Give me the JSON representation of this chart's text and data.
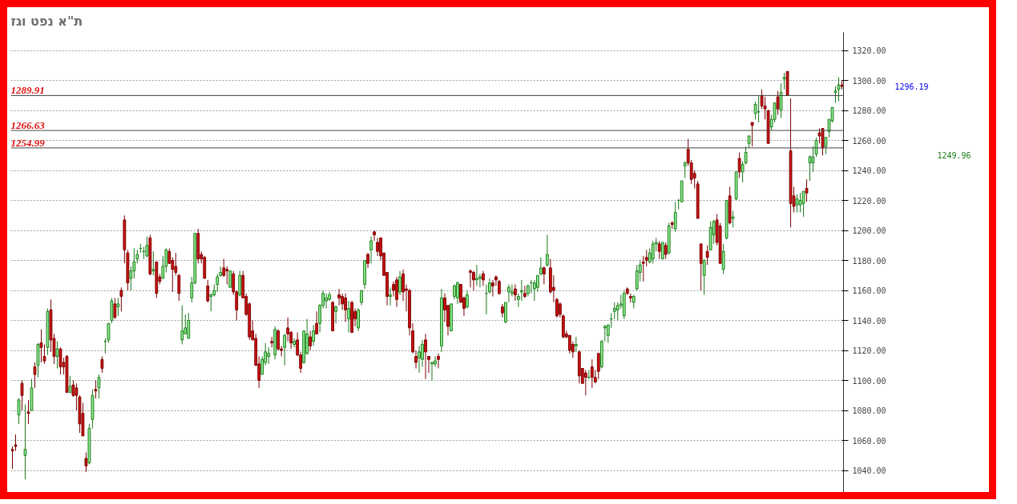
{
  "chart_data": {
    "type": "candlestick",
    "title": "ת\"א נפט וגז",
    "categories": [
      null,
      null,
      null,
      null,
      null,
      null,
      null,
      null,
      null,
      null,
      null,
      null,
      null,
      null,
      null,
      null,
      null,
      null,
      null,
      null,
      null,
      null,
      null,
      null,
      null,
      null,
      null,
      null,
      null,
      null,
      null,
      null,
      null,
      null,
      null,
      null,
      null,
      null,
      null,
      null,
      null,
      null,
      null,
      null,
      null,
      null,
      null,
      null,
      null,
      null,
      null,
      null,
      null,
      null,
      null,
      null,
      null,
      null,
      null,
      null,
      null,
      null,
      null,
      null,
      null,
      null,
      null,
      null,
      null,
      null,
      null,
      null,
      null,
      null,
      null,
      null,
      null,
      null,
      null,
      null,
      null,
      null,
      null,
      null,
      null,
      null,
      null,
      null,
      null,
      null,
      null,
      null,
      null,
      null,
      null,
      null,
      null,
      null,
      null,
      null,
      null,
      null,
      null,
      null,
      null,
      null,
      null,
      null,
      null,
      null,
      null,
      null,
      null,
      null,
      null,
      null,
      null,
      null,
      null,
      null,
      null,
      null,
      null,
      null,
      null,
      null,
      null,
      null,
      null,
      null,
      null,
      null,
      null,
      null,
      null,
      null,
      null,
      null,
      null,
      null,
      null,
      null,
      null,
      null,
      null,
      null,
      null,
      null,
      null,
      null,
      null,
      null,
      null,
      null,
      null,
      null,
      null,
      null,
      null,
      null,
      null,
      null,
      null,
      null,
      null,
      null,
      null,
      null,
      null,
      null,
      null,
      null,
      null,
      null,
      null,
      null,
      null,
      null,
      null,
      null,
      null,
      null,
      null,
      null,
      null,
      null,
      null,
      null,
      null,
      null,
      null,
      null,
      null,
      null,
      null,
      null,
      null,
      null,
      null,
      null,
      null,
      null,
      null,
      null,
      null,
      null,
      null,
      null,
      null,
      null,
      null,
      null,
      null,
      null,
      null,
      null,
      null,
      null,
      null,
      null,
      null,
      null,
      null,
      null,
      null,
      null,
      null,
      null,
      null,
      null,
      null,
      null,
      null,
      null,
      null,
      null,
      null,
      null,
      null,
      null,
      null,
      null,
      null,
      null,
      null,
      null,
      null,
      null,
      null,
      null,
      null,
      null,
      null,
      null,
      null,
      null,
      null,
      null,
      null,
      null
    ],
    "ohlc": [
      [
        1054,
        1056,
        1041,
        1053
      ],
      [
        1057,
        1064,
        1053,
        1056
      ],
      [
        1077,
        1088,
        1071,
        1087
      ],
      [
        1098,
        1100,
        1080,
        1090
      ],
      [
        1050,
        1084,
        1034,
        1054
      ],
      [
        1079,
        1087,
        1071,
        1078
      ],
      [
        1080,
        1101,
        1080,
        1095
      ],
      [
        1109,
        1112,
        1095,
        1104
      ],
      [
        1110,
        1125,
        1102,
        1124
      ],
      [
        1125,
        1134,
        1112,
        1122
      ],
      [
        1116,
        1124,
        1111,
        1113
      ],
      [
        1122,
        1148,
        1117,
        1146
      ],
      [
        1147,
        1154,
        1119,
        1127
      ],
      [
        1128,
        1131,
        1111,
        1116
      ],
      [
        1116,
        1126,
        1108,
        1121
      ],
      [
        1121,
        1122,
        1104,
        1109
      ],
      [
        1112,
        1115,
        1104,
        1109
      ],
      [
        1116,
        1117,
        1092,
        1092
      ],
      [
        1092,
        1103,
        1092,
        1096
      ],
      [
        1097,
        1100,
        1089,
        1090
      ],
      [
        1095,
        1098,
        1080,
        1090
      ],
      [
        1089,
        1090,
        1065,
        1071
      ],
      [
        1078,
        1085,
        1063,
        1063
      ],
      [
        1048,
        1052,
        1039,
        1043
      ],
      [
        1045,
        1071,
        1044,
        1068
      ],
      [
        1074,
        1094,
        1068,
        1090
      ],
      [
        1094,
        1100,
        1088,
        1093
      ],
      [
        1095,
        1104,
        1088,
        1102
      ],
      [
        1114,
        1116,
        1105,
        1108
      ],
      [
        1126,
        1128,
        1118,
        1126
      ],
      [
        1127,
        1138,
        1125,
        1138
      ],
      [
        1140,
        1155,
        1138,
        1153
      ],
      [
        1151,
        1155,
        1141,
        1142
      ],
      [
        1149,
        1155,
        1143,
        1151
      ],
      [
        1160,
        1162,
        1146,
        1156
      ],
      [
        1207,
        1210,
        1178,
        1187
      ],
      [
        1185,
        1187,
        1160,
        1165
      ],
      [
        1168,
        1176,
        1160,
        1173
      ],
      [
        1173,
        1188,
        1168,
        1179
      ],
      [
        1181,
        1187,
        1178,
        1184
      ],
      [
        1188,
        1191,
        1185,
        1188
      ],
      [
        1186,
        1189,
        1181,
        1186
      ],
      [
        1183,
        1196,
        1182,
        1190
      ],
      [
        1195,
        1197,
        1170,
        1171
      ],
      [
        1173,
        1186,
        1170,
        1174
      ],
      [
        1179,
        1179,
        1155,
        1158
      ],
      [
        1169,
        1171,
        1164,
        1166
      ],
      [
        1168,
        1183,
        1168,
        1176
      ],
      [
        1176,
        1188,
        1172,
        1187
      ],
      [
        1186,
        1188,
        1178,
        1178
      ],
      [
        1180,
        1182,
        1159,
        1174
      ],
      [
        1176,
        1185,
        1170,
        1172
      ],
      [
        1170,
        1171,
        1153,
        1158
      ],
      [
        1127,
        1150,
        1124,
        1133
      ],
      [
        1131,
        1144,
        1131,
        1135
      ],
      [
        1128,
        1145,
        1128,
        1140
      ],
      [
        1155,
        1169,
        1152,
        1165
      ],
      [
        1165,
        1198,
        1164,
        1198
      ],
      [
        1198,
        1201,
        1178,
        1181
      ],
      [
        1184,
        1186,
        1178,
        1181
      ],
      [
        1182,
        1183,
        1168,
        1168
      ],
      [
        1163,
        1167,
        1152,
        1153
      ],
      [
        1156,
        1158,
        1146,
        1157
      ],
      [
        1157,
        1164,
        1156,
        1160
      ],
      [
        1164,
        1171,
        1159,
        1169
      ],
      [
        1170,
        1176,
        1169,
        1172
      ],
      [
        1175,
        1181,
        1169,
        1170
      ],
      [
        1174,
        1176,
        1164,
        1173
      ],
      [
        1162,
        1173,
        1162,
        1173
      ],
      [
        1171,
        1173,
        1157,
        1159
      ],
      [
        1159,
        1160,
        1140,
        1147
      ],
      [
        1157,
        1173,
        1156,
        1170
      ],
      [
        1170,
        1173,
        1155,
        1155
      ],
      [
        1156,
        1158,
        1143,
        1144
      ],
      [
        1151,
        1152,
        1127,
        1129
      ],
      [
        1133,
        1140,
        1127,
        1127
      ],
      [
        1128,
        1131,
        1110,
        1110
      ],
      [
        1111,
        1116,
        1095,
        1100
      ],
      [
        1104,
        1116,
        1104,
        1114
      ],
      [
        1112,
        1125,
        1110,
        1119
      ],
      [
        1116,
        1122,
        1111,
        1118
      ],
      [
        1126,
        1129,
        1122,
        1125
      ],
      [
        1117,
        1136,
        1114,
        1134
      ],
      [
        1133,
        1134,
        1120,
        1121
      ],
      [
        1121,
        1123,
        1116,
        1120
      ],
      [
        1122,
        1131,
        1110,
        1130
      ],
      [
        1135,
        1142,
        1126,
        1131
      ],
      [
        1132,
        1133,
        1121,
        1125
      ],
      [
        1124,
        1128,
        1122,
        1126
      ],
      [
        1127,
        1132,
        1116,
        1117
      ],
      [
        1117,
        1119,
        1105,
        1108
      ],
      [
        1112,
        1133,
        1111,
        1133
      ],
      [
        1118,
        1141,
        1117,
        1131
      ],
      [
        1129,
        1133,
        1120,
        1123
      ],
      [
        1126,
        1137,
        1123,
        1133
      ],
      [
        1138,
        1146,
        1131,
        1131
      ],
      [
        1138,
        1151,
        1132,
        1150
      ],
      [
        1150,
        1160,
        1148,
        1158
      ],
      [
        1153,
        1158,
        1148,
        1155
      ],
      [
        1154,
        1159,
        1153,
        1157
      ],
      [
        1152,
        1153,
        1133,
        1133
      ],
      [
        1146,
        1150,
        1138,
        1149
      ],
      [
        1157,
        1161,
        1150,
        1155
      ],
      [
        1156,
        1158,
        1147,
        1151
      ],
      [
        1155,
        1158,
        1139,
        1147
      ],
      [
        1141,
        1153,
        1132,
        1148
      ],
      [
        1152,
        1153,
        1132,
        1132
      ],
      [
        1146,
        1148,
        1136,
        1141
      ],
      [
        1135,
        1148,
        1133,
        1147
      ],
      [
        1152,
        1160,
        1150,
        1160
      ],
      [
        1164,
        1180,
        1161,
        1180
      ],
      [
        1184,
        1185,
        1175,
        1178
      ],
      [
        1187,
        1196,
        1178,
        1193
      ],
      [
        1199,
        1200,
        1193,
        1197
      ],
      [
        1192,
        1195,
        1183,
        1186
      ],
      [
        1195,
        1195,
        1180,
        1183
      ],
      [
        1185,
        1185,
        1170,
        1170
      ],
      [
        1172,
        1172,
        1150,
        1156
      ],
      [
        1156,
        1162,
        1150,
        1157
      ],
      [
        1164,
        1166,
        1156,
        1160
      ],
      [
        1167,
        1169,
        1149,
        1154
      ],
      [
        1159,
        1173,
        1157,
        1169
      ],
      [
        1171,
        1174,
        1153,
        1159
      ],
      [
        1161,
        1164,
        1146,
        1160
      ],
      [
        1160,
        1161,
        1130,
        1135
      ],
      [
        1133,
        1138,
        1118,
        1119
      ],
      [
        1116,
        1120,
        1108,
        1112
      ],
      [
        1115,
        1123,
        1105,
        1119
      ],
      [
        1114,
        1127,
        1109,
        1124
      ],
      [
        1127,
        1131,
        1101,
        1119
      ],
      [
        1116,
        1116,
        1105,
        1114
      ],
      [
        1111,
        1112,
        1100,
        1112
      ],
      [
        1111,
        1116,
        1109,
        1113
      ],
      [
        1116,
        1118,
        1108,
        1114
      ],
      [
        1123,
        1161,
        1119,
        1155
      ],
      [
        1155,
        1158,
        1139,
        1147
      ],
      [
        1150,
        1150,
        1130,
        1136
      ],
      [
        1133,
        1151,
        1133,
        1151
      ],
      [
        1156,
        1164,
        1154,
        1163
      ],
      [
        1155,
        1166,
        1151,
        1165
      ],
      [
        1164,
        1164,
        1152,
        1152
      ],
      [
        1155,
        1156,
        1143,
        1148
      ],
      [
        1149,
        1160,
        1148,
        1157
      ],
      [
        1173,
        1174,
        1162,
        1172
      ],
      [
        1172,
        1173,
        1160,
        1167
      ],
      [
        1167,
        1177,
        1163,
        1168
      ],
      [
        1168,
        1171,
        1162,
        1169
      ],
      [
        1171,
        1173,
        1163,
        1167
      ],
      [
        1158,
        1164,
        1144,
        1158
      ],
      [
        1159,
        1168,
        1158,
        1165
      ],
      [
        1165,
        1167,
        1156,
        1163
      ],
      [
        1169,
        1170,
        1163,
        1167
      ],
      [
        1166,
        1167,
        1157,
        1158
      ],
      [
        1149,
        1151,
        1142,
        1145
      ],
      [
        1139,
        1152,
        1138,
        1152
      ],
      [
        1159,
        1164,
        1152,
        1162
      ],
      [
        1158,
        1164,
        1156,
        1159
      ],
      [
        1161,
        1164,
        1153,
        1157
      ],
      [
        1154,
        1158,
        1149,
        1156
      ],
      [
        1159,
        1167,
        1153,
        1160
      ],
      [
        1158,
        1163,
        1155,
        1156
      ],
      [
        1158,
        1164,
        1156,
        1163
      ],
      [
        1165,
        1167,
        1158,
        1165
      ],
      [
        1161,
        1167,
        1153,
        1165
      ],
      [
        1162,
        1170,
        1159,
        1170
      ],
      [
        1171,
        1182,
        1170,
        1175
      ],
      [
        1175,
        1176,
        1164,
        1171
      ],
      [
        1177,
        1197,
        1176,
        1184
      ],
      [
        1175,
        1181,
        1158,
        1159
      ],
      [
        1162,
        1170,
        1152,
        1160
      ],
      [
        1154,
        1155,
        1142,
        1143
      ],
      [
        1151,
        1152,
        1142,
        1144
      ],
      [
        1143,
        1144,
        1128,
        1129
      ],
      [
        1131,
        1133,
        1128,
        1129
      ],
      [
        1130,
        1130,
        1118,
        1120
      ],
      [
        1124,
        1126,
        1115,
        1119
      ],
      [
        1123,
        1129,
        1119,
        1124
      ],
      [
        1119,
        1120,
        1098,
        1103
      ],
      [
        1108,
        1108,
        1098,
        1098
      ],
      [
        1105,
        1107,
        1090,
        1102
      ],
      [
        1102,
        1107,
        1101,
        1102
      ],
      [
        1109,
        1114,
        1095,
        1102
      ],
      [
        1102,
        1107,
        1098,
        1099
      ],
      [
        1118,
        1118,
        1101,
        1106
      ],
      [
        1109,
        1127,
        1108,
        1126
      ],
      [
        1135,
        1137,
        1126,
        1136
      ],
      [
        1130,
        1137,
        1125,
        1137
      ],
      [
        1141,
        1145,
        1135,
        1141
      ],
      [
        1146,
        1152,
        1141,
        1148
      ],
      [
        1147,
        1152,
        1140,
        1150
      ],
      [
        1150,
        1157,
        1148,
        1151
      ],
      [
        1143,
        1160,
        1141,
        1158
      ],
      [
        1161,
        1162,
        1157,
        1158
      ],
      [
        1156,
        1158,
        1152,
        1155
      ],
      [
        1152,
        1157,
        1148,
        1156
      ],
      [
        1161,
        1177,
        1160,
        1173
      ],
      [
        1172,
        1180,
        1166,
        1177
      ],
      [
        1179,
        1183,
        1166,
        1178
      ],
      [
        1182,
        1187,
        1176,
        1180
      ],
      [
        1179,
        1188,
        1178,
        1185
      ],
      [
        1181,
        1193,
        1178,
        1191
      ],
      [
        1191,
        1195,
        1186,
        1192
      ],
      [
        1191,
        1193,
        1181,
        1186
      ],
      [
        1181,
        1192,
        1181,
        1192
      ],
      [
        1190,
        1192,
        1181,
        1184
      ],
      [
        1185,
        1205,
        1184,
        1203
      ],
      [
        1205,
        1206,
        1201,
        1204
      ],
      [
        1201,
        1219,
        1199,
        1212
      ],
      [
        1220,
        1221,
        1214,
        1220
      ],
      [
        1219,
        1233,
        1219,
        1233
      ],
      [
        1243,
        1246,
        1235,
        1245
      ],
      [
        1254,
        1261,
        1243,
        1245
      ],
      [
        1245,
        1247,
        1231,
        1234
      ],
      [
        1238,
        1240,
        1228,
        1235
      ],
      [
        1231,
        1233,
        1208,
        1208
      ],
      [
        1191,
        1191,
        1160,
        1178
      ],
      [
        1170,
        1181,
        1157,
        1180
      ],
      [
        1186,
        1190,
        1177,
        1182
      ],
      [
        1187,
        1206,
        1187,
        1202
      ],
      [
        1197,
        1207,
        1191,
        1206
      ],
      [
        1207,
        1211,
        1190,
        1192
      ],
      [
        1203,
        1205,
        1178,
        1178
      ],
      [
        1174,
        1191,
        1171,
        1186
      ],
      [
        1195,
        1220,
        1194,
        1220
      ],
      [
        1223,
        1229,
        1204,
        1205
      ],
      [
        1208,
        1213,
        1202,
        1209
      ],
      [
        1221,
        1239,
        1220,
        1239
      ],
      [
        1248,
        1252,
        1235,
        1239
      ],
      [
        1239,
        1246,
        1232,
        1244
      ],
      [
        1245,
        1256,
        1244,
        1252
      ],
      [
        1258,
        1263,
        1255,
        1263
      ],
      [
        1272,
        1272,
        1256,
        1270
      ],
      [
        1278,
        1286,
        1274,
        1284
      ],
      [
        1279,
        1290,
        1272,
        1279
      ],
      [
        1290,
        1294,
        1281,
        1283
      ],
      [
        1283,
        1289,
        1274,
        1281
      ],
      [
        1280,
        1280,
        1258,
        1258
      ],
      [
        1269,
        1277,
        1267,
        1274
      ],
      [
        1274,
        1285,
        1272,
        1285
      ],
      [
        1289,
        1293,
        1277,
        1281
      ],
      [
        1280,
        1298,
        1275,
        1292
      ],
      [
        1301,
        1305,
        1294,
        1302
      ],
      [
        1306,
        1306,
        1290,
        1290
      ],
      [
        1253,
        1288,
        1202,
        1218
      ],
      [
        1223,
        1229,
        1212,
        1216
      ],
      [
        1217,
        1224,
        1212,
        1221
      ],
      [
        1217,
        1225,
        1212,
        1220
      ],
      [
        1218,
        1226,
        1209,
        1226
      ],
      [
        1228,
        1234,
        1219,
        1225
      ],
      [
        1245,
        1250,
        1233,
        1249
      ],
      [
        1245,
        1256,
        1239,
        1249
      ],
      [
        1251,
        1262,
        1249,
        1260
      ],
      [
        1265,
        1268,
        1258,
        1263
      ],
      [
        1268,
        1268,
        1250,
        1255
      ],
      [
        1256,
        1262,
        1251,
        1262
      ],
      [
        1266,
        1274,
        1262,
        1274
      ],
      [
        1273,
        1282,
        1272,
        1282
      ],
      [
        1292,
        1296,
        1285,
        1293
      ],
      [
        1294,
        1302,
        1286,
        1297
      ],
      [
        1297,
        1300,
        1294,
        1296
      ]
    ],
    "ylim": [
      1020,
      1332
    ],
    "yticks": [
      {
        "value": 1040,
        "label": "1040.00"
      },
      {
        "value": 1060,
        "label": "1060.00"
      },
      {
        "value": 1080,
        "label": "1080.00"
      },
      {
        "value": 1100,
        "label": "1100.00"
      },
      {
        "value": 1120,
        "label": "1120.00"
      },
      {
        "value": 1140,
        "label": "1140.00"
      },
      {
        "value": 1160,
        "label": "1160.00"
      },
      {
        "value": 1180,
        "label": "1180.00"
      },
      {
        "value": 1200,
        "label": "1200.00"
      },
      {
        "value": 1220,
        "label": "1220.00"
      },
      {
        "value": 1240,
        "label": "1240.00"
      },
      {
        "value": 1260,
        "label": "1260.00"
      },
      {
        "value": 1280,
        "label": "1280.00"
      },
      {
        "value": 1300,
        "label": "1300.00"
      },
      {
        "value": 1320,
        "label": "1320.00"
      }
    ],
    "tick_labels": "y",
    "grid": "y",
    "ref_lines": [
      {
        "axis": "y",
        "value": 1289.91,
        "label": "1289.91",
        "color": "#444444"
      },
      {
        "axis": "y",
        "value": 1266.63,
        "label": "1266.63",
        "color": "#444444"
      },
      {
        "axis": "y",
        "value": 1254.99,
        "label": "1254.99",
        "color": "#444444"
      }
    ],
    "annotations": [
      "1296.19",
      "1249.96"
    ]
  }
}
